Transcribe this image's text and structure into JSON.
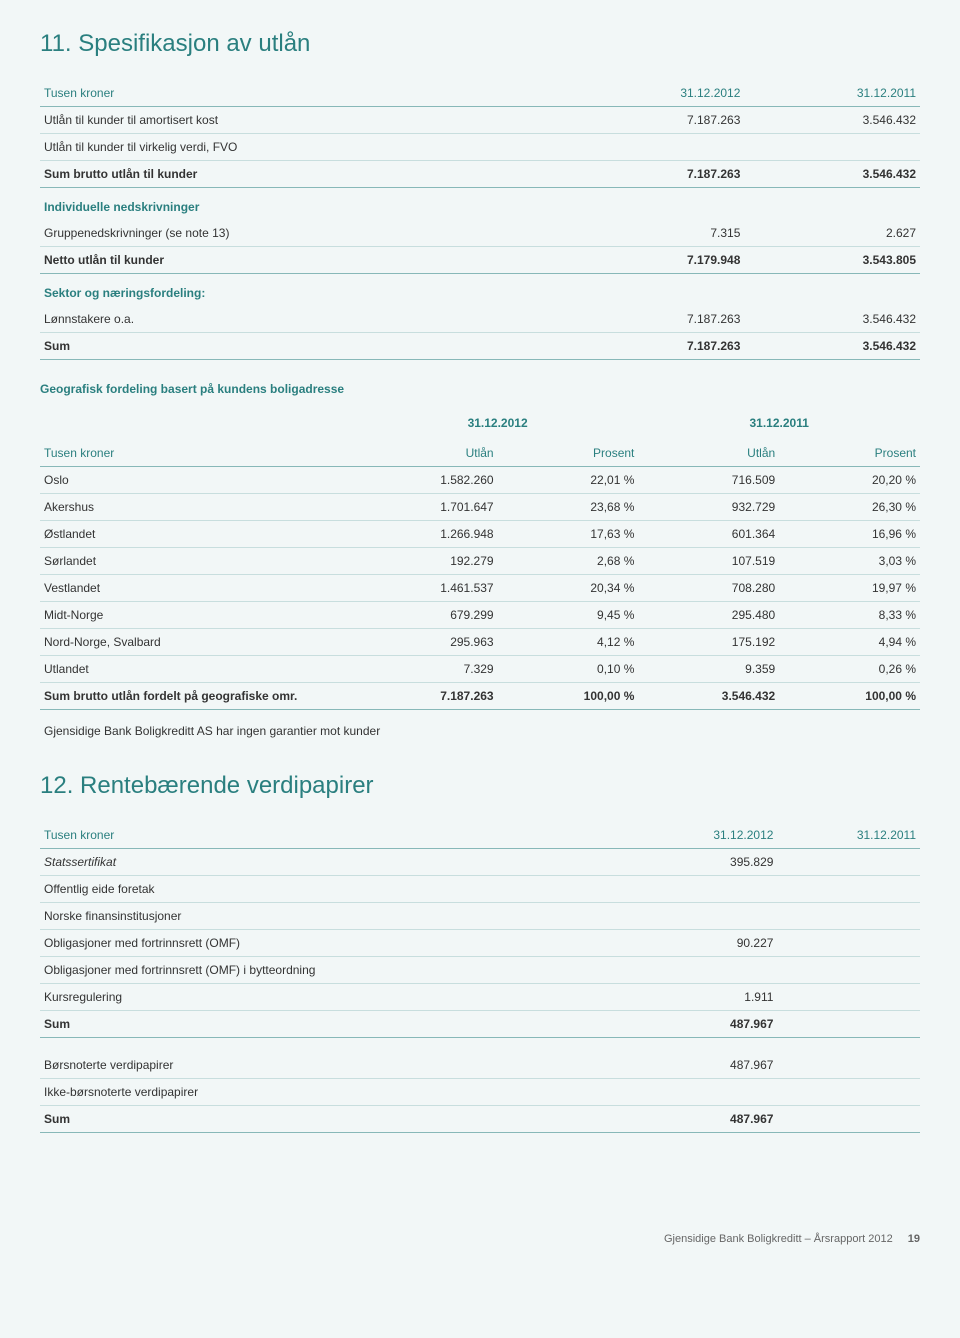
{
  "section11": {
    "title": "11. Spesifikasjon av utlån",
    "headers": {
      "col1": "Tusen kroner",
      "c2012": "31.12.2012",
      "c2011": "31.12.2011"
    },
    "rows": [
      {
        "label": "Utlån til kunder til amortisert kost",
        "v12": "7.187.263",
        "v11": "3.546.432"
      },
      {
        "label": "Utlån til kunder til virkelig verdi, FVO",
        "v12": "",
        "v11": ""
      }
    ],
    "sumRow": {
      "label": "Sum brutto utlån til kunder",
      "v12": "7.187.263",
      "v11": "3.546.432"
    },
    "indiv": {
      "title": "Individuelle nedskrivninger",
      "rows": [
        {
          "label": "Gruppenedskrivninger (se note 13)",
          "v12": "7.315",
          "v11": "2.627"
        }
      ],
      "netto": {
        "label": "Netto utlån til kunder",
        "v12": "7.179.948",
        "v11": "3.543.805"
      }
    },
    "sektor": {
      "title": "Sektor og næringsfordeling:",
      "rows": [
        {
          "label": "Lønnstakere o.a.",
          "v12": "7.187.263",
          "v11": "3.546.432"
        }
      ],
      "sum": {
        "label": "Sum",
        "v12": "7.187.263",
        "v11": "3.546.432"
      }
    }
  },
  "geo": {
    "title": "Geografisk fordeling basert på kundens boligadresse",
    "headers": {
      "tk": "Tusen kroner",
      "g2012": "31.12.2012",
      "g2011": "31.12.2011",
      "utlan": "Utlån",
      "prosent": "Prosent"
    },
    "rows": [
      {
        "label": "Oslo",
        "v12": "1.582.260",
        "p12": "22,01 %",
        "v11": "716.509",
        "p11": "20,20 %"
      },
      {
        "label": "Akershus",
        "v12": "1.701.647",
        "p12": "23,68 %",
        "v11": "932.729",
        "p11": "26,30 %"
      },
      {
        "label": "Østlandet",
        "v12": "1.266.948",
        "p12": "17,63 %",
        "v11": "601.364",
        "p11": "16,96 %"
      },
      {
        "label": "Sørlandet",
        "v12": "192.279",
        "p12": "2,68 %",
        "v11": "107.519",
        "p11": "3,03 %"
      },
      {
        "label": "Vestlandet",
        "v12": "1.461.537",
        "p12": "20,34 %",
        "v11": "708.280",
        "p11": "19,97 %"
      },
      {
        "label": "Midt-Norge",
        "v12": "679.299",
        "p12": "9,45 %",
        "v11": "295.480",
        "p11": "8,33 %"
      },
      {
        "label": "Nord-Norge, Svalbard",
        "v12": "295.963",
        "p12": "4,12 %",
        "v11": "175.192",
        "p11": "4,94 %"
      },
      {
        "label": "Utlandet",
        "v12": "7.329",
        "p12": "0,10 %",
        "v11": "9.359",
        "p11": "0,26 %"
      }
    ],
    "sum": {
      "label": "Sum brutto utlån fordelt på geografiske omr.",
      "v12": "7.187.263",
      "p12": "100,00 %",
      "v11": "3.546.432",
      "p11": "100,00 %"
    },
    "note": "Gjensidige Bank Boligkreditt AS har ingen garantier mot kunder"
  },
  "section12": {
    "title": "12. Rentebærende verdipapirer",
    "headers": {
      "col1": "Tusen kroner",
      "c2012": "31.12.2012",
      "c2011": "31.12.2011"
    },
    "rows": [
      {
        "label": "Statssertifikat",
        "v12": "395.829",
        "v11": "",
        "italic": true
      },
      {
        "label": "Offentlig eide foretak",
        "v12": "",
        "v11": ""
      },
      {
        "label": "Norske finansinstitusjoner",
        "v12": "",
        "v11": ""
      },
      {
        "label": "Obligasjoner med fortrinnsrett (OMF)",
        "v12": "90.227",
        "v11": ""
      },
      {
        "label": "Obligasjoner med fortrinnsrett (OMF) i bytteordning",
        "v12": "",
        "v11": ""
      },
      {
        "label": "Kursregulering",
        "v12": "1.911",
        "v11": ""
      }
    ],
    "sum": {
      "label": "Sum",
      "v12": "487.967",
      "v11": ""
    },
    "rows2": [
      {
        "label": "Børsnoterte verdipapirer",
        "v12": "487.967",
        "v11": ""
      },
      {
        "label": "Ikke-børsnoterte verdipapirer",
        "v12": "",
        "v11": ""
      }
    ],
    "sum2": {
      "label": "Sum",
      "v12": "487.967",
      "v11": ""
    }
  },
  "footer": {
    "text": "Gjensidige Bank Boligkreditt – Årsrapport 2012",
    "page": "19"
  }
}
